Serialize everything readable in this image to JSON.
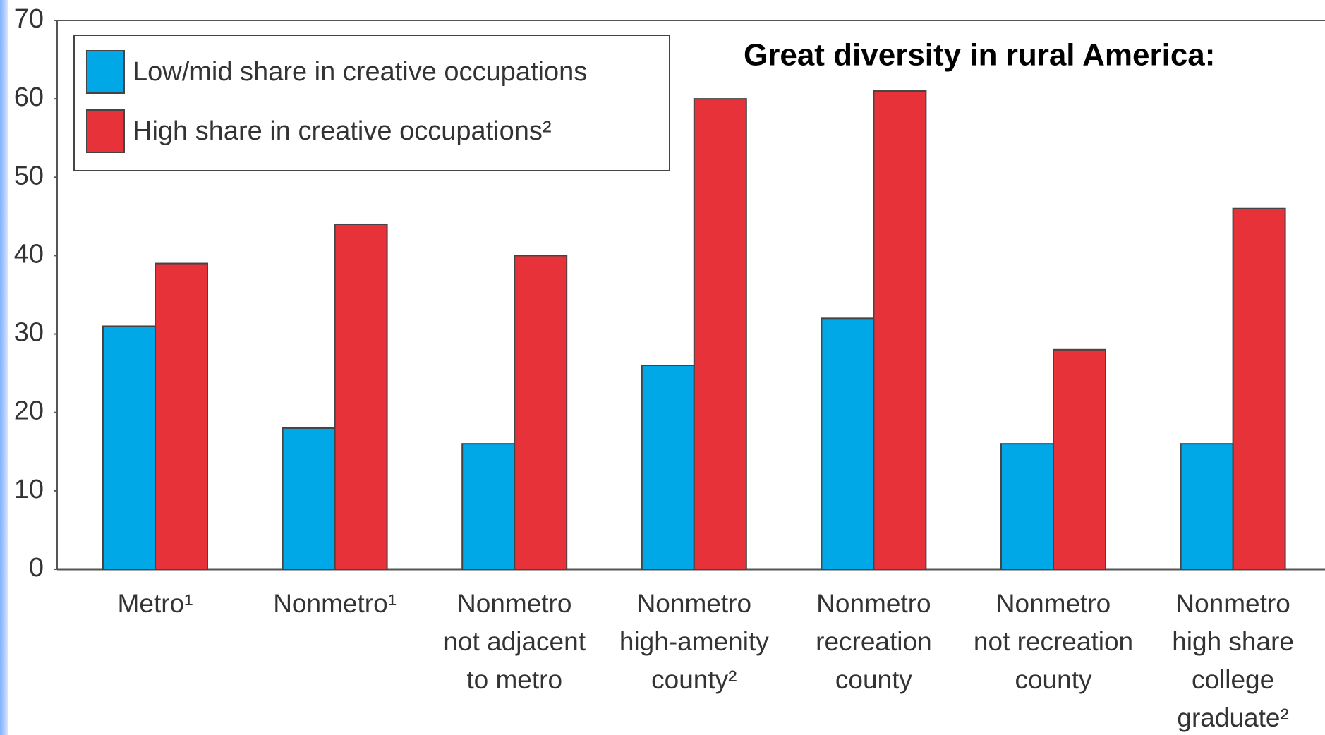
{
  "chart_data": {
    "type": "bar",
    "title": "Great diversity in rural America:",
    "categories": [
      [
        "Metro¹"
      ],
      [
        "Nonmetro¹"
      ],
      [
        "Nonmetro",
        "not adjacent",
        "to metro"
      ],
      [
        "Nonmetro",
        "high-amenity",
        "county²"
      ],
      [
        "Nonmetro",
        "recreation",
        "county"
      ],
      [
        "Nonmetro",
        "not recreation",
        "county"
      ],
      [
        "Nonmetro",
        "high share",
        "college",
        "graduate²"
      ]
    ],
    "series": [
      {
        "name": "Low/mid share in creative occupations",
        "color": "#00a8e8",
        "values": [
          31,
          18,
          16,
          26,
          32,
          16,
          16
        ]
      },
      {
        "name": "High share in creative occupations²",
        "color": "#e8323a",
        "values": [
          39,
          44,
          40,
          60,
          61,
          28,
          46
        ]
      }
    ],
    "ylim": [
      0,
      70
    ],
    "yticks": [
      0,
      10,
      20,
      30,
      40,
      50,
      60,
      70
    ],
    "legend": "upper left"
  }
}
